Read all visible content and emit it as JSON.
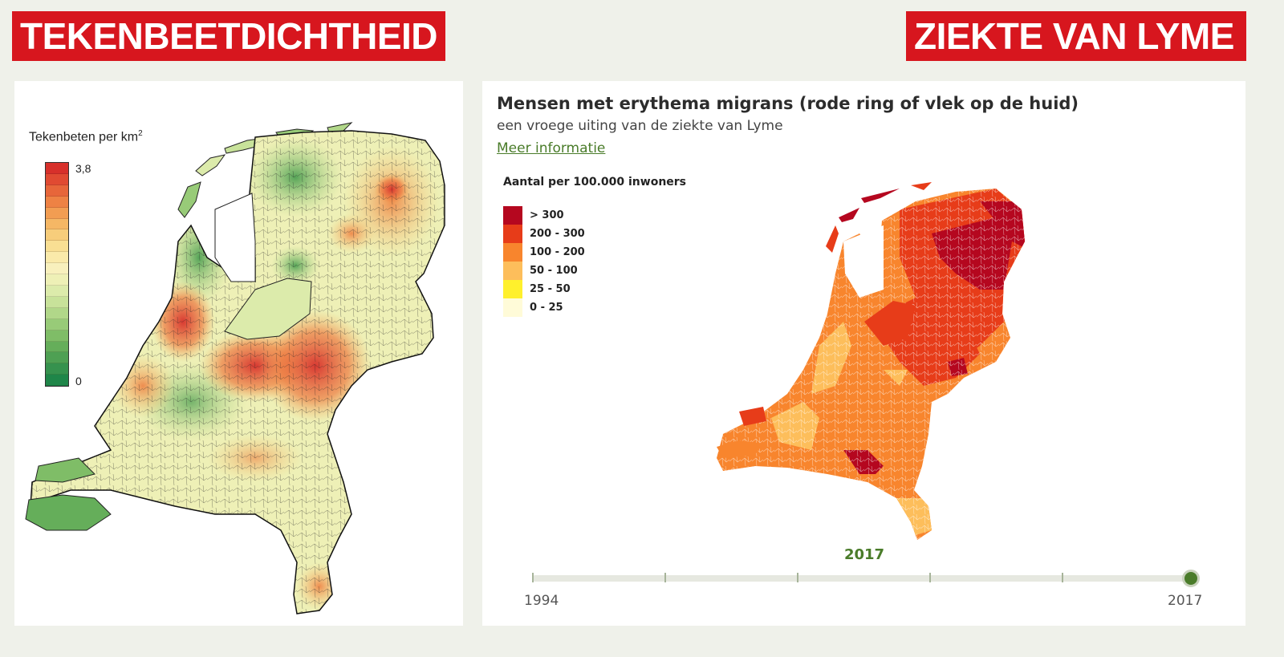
{
  "banners": {
    "left": "TEKENBEETDICHTHEID",
    "right": "ZIEKTE VAN LYME"
  },
  "tick_map": {
    "legend_title": "Tekenbeten per km",
    "legend_title_sup": "2",
    "scale_max": "3,8",
    "scale_min": "0",
    "scale_colors": [
      "#d7302b",
      "#e04a32",
      "#e7663a",
      "#ee8244",
      "#f29d52",
      "#f5b765",
      "#f7cd7b",
      "#f9df93",
      "#faeaaa",
      "#f8f0bd",
      "#eef0b6",
      "#dcebab",
      "#c8e29a",
      "#b1d789",
      "#98cb78",
      "#7fbd67",
      "#65ae5a",
      "#4ea053",
      "#36924e",
      "#1f8649"
    ]
  },
  "lyme_map": {
    "title": "Mensen met erythema migrans (rode ring of vlek op de huid)",
    "subtitle": "een vroege uiting van de ziekte van Lyme",
    "link": "Meer informatie",
    "legend_title": "Aantal per 100.000 inwoners",
    "legend": [
      {
        "label": "> 300",
        "color": "#b5071f"
      },
      {
        "label": "200 - 300",
        "color": "#e73c19"
      },
      {
        "label": "100 - 200",
        "color": "#f8852d"
      },
      {
        "label": "50 - 100",
        "color": "#fdbe5b"
      },
      {
        "label": "25 - 50",
        "color": "#fff02c"
      },
      {
        "label": "0 - 25",
        "color": "#fffbd8"
      }
    ],
    "slider": {
      "current_year": "2017",
      "start_label": "1994",
      "end_label": "2017",
      "position": 1.0
    }
  }
}
